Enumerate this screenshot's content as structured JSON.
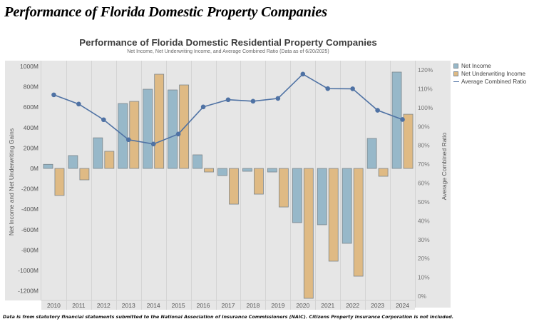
{
  "page_title": "Performance of Florida Domestic Property Companies",
  "footer_note": "Data is from statutory financial statements submitted to the National Association of Insurance Commissioners (NAIC). Citizens Property Insurance Corporation is not included.",
  "colors": {
    "net_income": "#97b8c9",
    "net_underwriting_income": "#dfba84",
    "average_combined_ratio": "#4f72a4",
    "panel_background": "#e6e6e6"
  },
  "legend": {
    "items": [
      {
        "label": "Net Income",
        "kind": "box",
        "color": "#97b8c9"
      },
      {
        "label": "Net Underwriting Income",
        "kind": "box",
        "color": "#dfba84"
      },
      {
        "label": "Average Combined Ratio",
        "kind": "line",
        "color": "#4f72a4"
      }
    ]
  },
  "chart_data": {
    "type": "bar",
    "title": "Performance of Florida Domestic Residential Property Companies",
    "subtitle": "Net Income, Net Underwriting Income, and Average Combined Ratio (Data as of 6/20/2025)",
    "xlabel": "",
    "ylabel": "Net Income and Net Underwriting Gains",
    "y2label": "Average Combined Ratio",
    "categories": [
      "2010",
      "2011",
      "2012",
      "2013",
      "2014",
      "2015",
      "2016",
      "2017",
      "2018",
      "2019",
      "2020",
      "2021",
      "2022",
      "2023",
      "2024"
    ],
    "ylim": [
      -1300,
      1050
    ],
    "yticks": [
      1000,
      800,
      600,
      400,
      200,
      0,
      -200,
      -400,
      -600,
      -800,
      -1000,
      -1200
    ],
    "ytick_labels": [
      "1000M",
      "800M",
      "600M",
      "400M",
      "200M",
      "0M",
      "-200M",
      "-400M",
      "-600M",
      "-800M",
      "-1000M",
      "-1200M"
    ],
    "y2lim": [
      -5,
      126
    ],
    "y2ticks": [
      120,
      110,
      100,
      90,
      80,
      70,
      60,
      50,
      40,
      30,
      20,
      10,
      0
    ],
    "y2tick_labels": [
      "120%",
      "110%",
      "100%",
      "90%",
      "80%",
      "70%",
      "60%",
      "50%",
      "40%",
      "30%",
      "20%",
      "10%",
      "0%"
    ],
    "grid": true,
    "legend_position": "right",
    "series": [
      {
        "name": "Net Income",
        "type": "bar",
        "axis": "left",
        "unit": "M",
        "values": [
          40,
          126,
          300,
          636,
          776,
          769,
          133,
          -70,
          -28,
          -35,
          -531,
          -552,
          -734,
          294,
          944
        ]
      },
      {
        "name": "Net Underwriting Income",
        "type": "bar",
        "axis": "left",
        "unit": "M",
        "values": [
          -265,
          -112,
          168,
          657,
          923,
          818,
          -35,
          -350,
          -252,
          -378,
          -1273,
          -909,
          -1056,
          -77,
          531
        ]
      },
      {
        "name": "Average Combined Ratio",
        "type": "line",
        "axis": "right",
        "unit": "%",
        "values": [
          106.8,
          101.9,
          93.6,
          83.0,
          80.7,
          86.0,
          100.4,
          104.2,
          103.4,
          104.9,
          117.8,
          110.1,
          110.0,
          98.6,
          93.7
        ]
      }
    ]
  }
}
